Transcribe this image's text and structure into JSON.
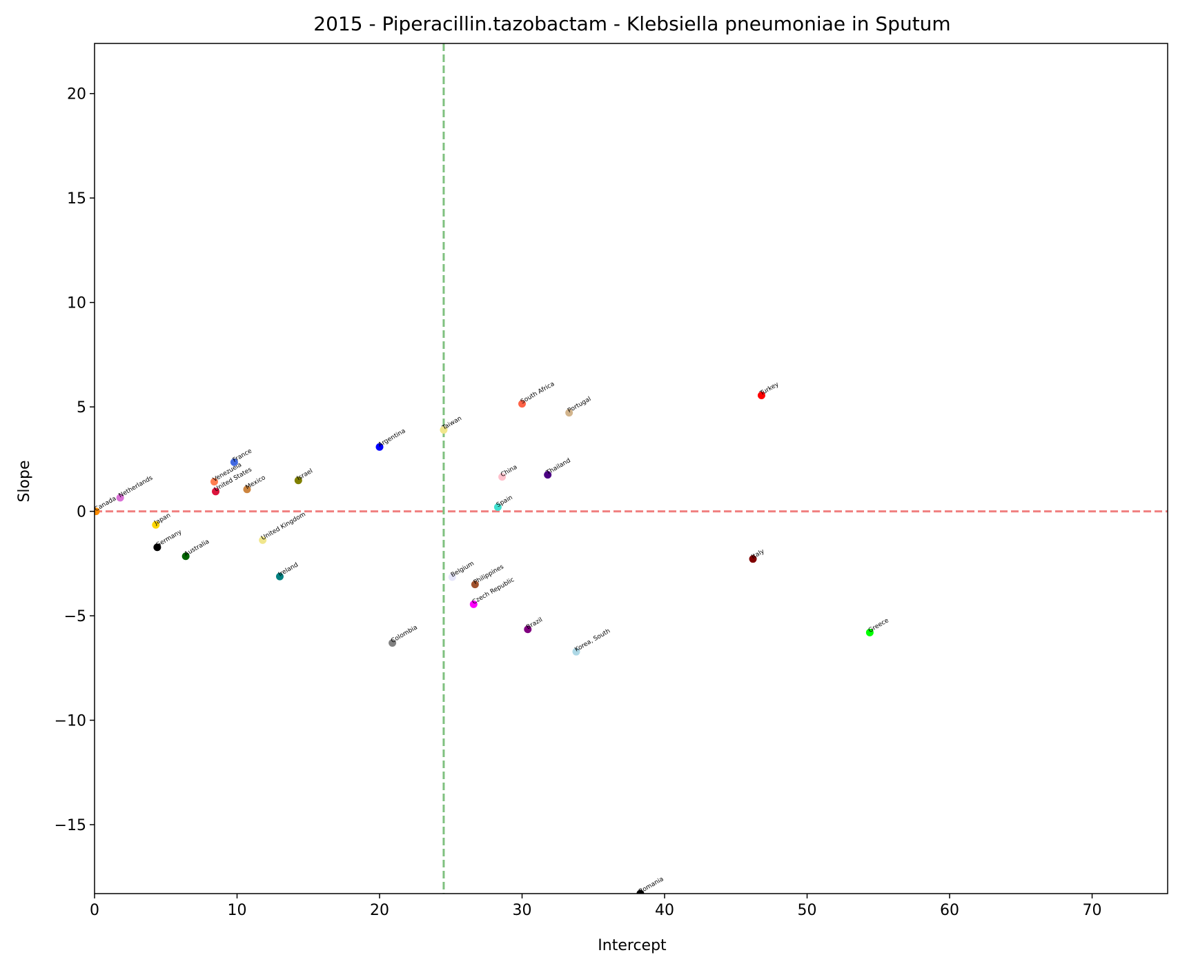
{
  "chart_data": {
    "type": "scatter",
    "title": "2015 - Piperacillin.tazobactam - Klebsiella pneumoniae in Sputum",
    "xlabel": "Intercept",
    "ylabel": "Slope",
    "xlim": [
      0,
      75.3
    ],
    "ylim": [
      -18.3,
      22.4
    ],
    "xticks": [
      0,
      10,
      20,
      30,
      40,
      50,
      60,
      70
    ],
    "yticks": [
      -15,
      -10,
      -5,
      0,
      5,
      10,
      15,
      20
    ],
    "xtick_labels": [
      "0",
      "10",
      "20",
      "30",
      "40",
      "50",
      "60",
      "70"
    ],
    "ytick_labels": [
      "−15",
      "−10",
      "−5",
      "0",
      "5",
      "10",
      "15",
      "20"
    ],
    "reference_lines": [
      {
        "orientation": "horizontal",
        "value": 0,
        "style": "dashed",
        "color": "#f08080"
      },
      {
        "orientation": "vertical",
        "value": 24.5,
        "style": "dashed",
        "color": "#7fc07f"
      }
    ],
    "grid": false,
    "points": [
      {
        "label": "Canada",
        "x": 0.1,
        "y": 0.0,
        "color": "#ff8c00"
      },
      {
        "label": "Netherlands",
        "x": 1.8,
        "y": 0.65,
        "color": "#da70d6"
      },
      {
        "label": "Japan",
        "x": 4.3,
        "y": -0.65,
        "color": "#ffd700"
      },
      {
        "label": "Germany",
        "x": 4.4,
        "y": -1.72,
        "color": "#000000"
      },
      {
        "label": "Australia",
        "x": 6.4,
        "y": -2.15,
        "color": "#006400"
      },
      {
        "label": "Venezuela",
        "x": 8.4,
        "y": 1.42,
        "color": "#ff7f50"
      },
      {
        "label": "United States",
        "x": 8.5,
        "y": 0.95,
        "color": "#dc143c"
      },
      {
        "label": "France",
        "x": 9.8,
        "y": 2.35,
        "color": "#4169e1"
      },
      {
        "label": "Mexico",
        "x": 10.7,
        "y": 1.05,
        "color": "#cd853f"
      },
      {
        "label": "United Kingdom",
        "x": 11.8,
        "y": -1.38,
        "color": "#f0e68c"
      },
      {
        "label": "Ireland",
        "x": 13.0,
        "y": -3.12,
        "color": "#008080"
      },
      {
        "label": "Israel",
        "x": 14.3,
        "y": 1.48,
        "color": "#808000"
      },
      {
        "label": "Argentina",
        "x": 20.0,
        "y": 3.08,
        "color": "#0000ff"
      },
      {
        "label": "Colombia",
        "x": 20.9,
        "y": -6.3,
        "color": "#808080"
      },
      {
        "label": "Taiwan",
        "x": 24.5,
        "y": 3.9,
        "color": "#f0e68c"
      },
      {
        "label": "Belgium",
        "x": 25.1,
        "y": -3.15,
        "color": "#e6e6fa"
      },
      {
        "label": "Czech Republic",
        "x": 26.6,
        "y": -4.45,
        "color": "#ff00ff"
      },
      {
        "label": "Philippines",
        "x": 26.7,
        "y": -3.5,
        "color": "#a0522d"
      },
      {
        "label": "Spain",
        "x": 28.3,
        "y": 0.2,
        "color": "#40e0d0"
      },
      {
        "label": "China",
        "x": 28.6,
        "y": 1.65,
        "color": "#ffc0cb"
      },
      {
        "label": "South Africa",
        "x": 30.0,
        "y": 5.15,
        "color": "#ff6347"
      },
      {
        "label": "Brazil",
        "x": 30.4,
        "y": -5.65,
        "color": "#800080"
      },
      {
        "label": "Thailand",
        "x": 31.8,
        "y": 1.75,
        "color": "#4b0082"
      },
      {
        "label": "Portugal",
        "x": 33.3,
        "y": 4.72,
        "color": "#d2b48c"
      },
      {
        "label": "Korea, South",
        "x": 33.8,
        "y": -6.72,
        "color": "#add8e6"
      },
      {
        "label": "Romania",
        "x": 38.3,
        "y": -18.3,
        "color": "#000000"
      },
      {
        "label": "Italy",
        "x": 46.2,
        "y": -2.28,
        "color": "#800000"
      },
      {
        "label": "Turkey",
        "x": 46.8,
        "y": 5.55,
        "color": "#ff0000"
      },
      {
        "label": "Greece",
        "x": 54.4,
        "y": -5.8,
        "color": "#00ff00"
      }
    ]
  }
}
